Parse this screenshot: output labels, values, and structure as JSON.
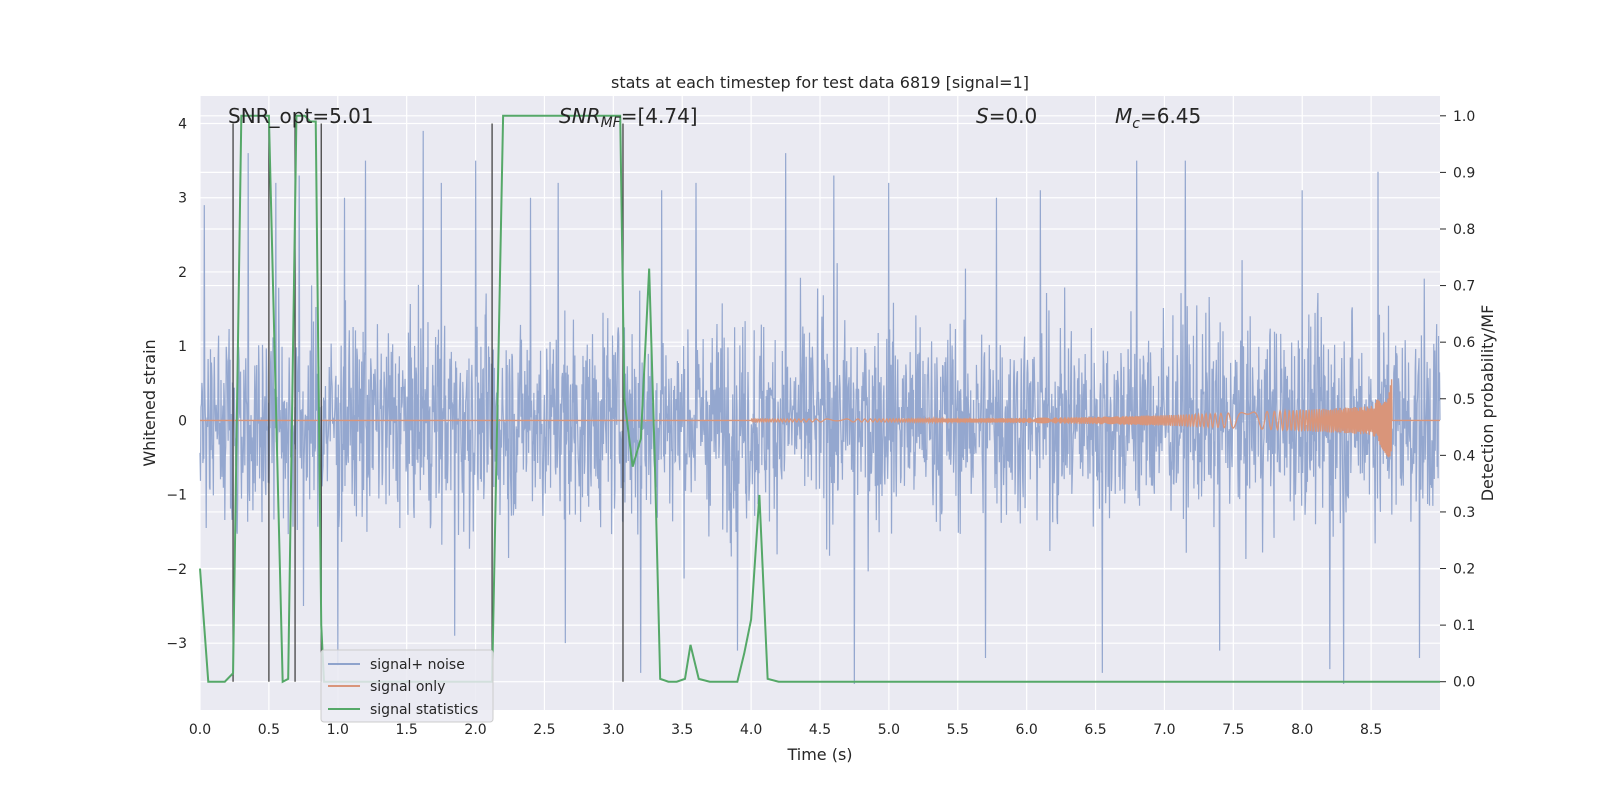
{
  "chart_data": {
    "type": "line",
    "title": "stats at each timestep for test data 6819 [signal=1]",
    "xlabel": "Time (s)",
    "ylabel_left": "Whitened strain",
    "ylabel_right": "Detection probability/MF",
    "xlim": [
      0.0,
      9.0
    ],
    "ylim_left": [
      -3.9,
      4.37
    ],
    "ylim_right": [
      -0.05,
      1.035
    ],
    "xticks": [
      "0.0",
      "0.5",
      "1.0",
      "1.5",
      "2.0",
      "2.5",
      "3.0",
      "3.5",
      "4.0",
      "4.5",
      "5.0",
      "5.5",
      "6.0",
      "6.5",
      "7.0",
      "7.5",
      "8.0",
      "8.5"
    ],
    "yticks_left": [
      "4",
      "3",
      "2",
      "1",
      "0",
      "−1",
      "−2",
      "−3"
    ],
    "yticks_right": [
      "1.0",
      "0.9",
      "0.8",
      "0.7",
      "0.6",
      "0.5",
      "0.4",
      "0.3",
      "0.2",
      "0.1",
      "0.0"
    ],
    "annotations": {
      "snr_opt": "SNR_opt=5.01",
      "snr_mf_prefix": "SNR",
      "snr_mf_sub": "MF",
      "snr_mf_value": "=[4.74]",
      "s_sym": "S",
      "s_value": "=0.0",
      "mc_sym": "M",
      "mc_sub": "c",
      "mc_value": "=6.45"
    },
    "legend": [
      "signal+ noise",
      "signal only",
      "signal statistics"
    ],
    "colors": {
      "noise": "#8fa3cc",
      "signal": "#d9957a",
      "stats": "#55a868",
      "plot_bg": "#eaeaf2",
      "grid": "#ffffff",
      "vline": "#444444"
    },
    "series": [
      {
        "name": "signal statistics",
        "axis": "right",
        "x": [
          0.0,
          0.06,
          0.18,
          0.24,
          0.3,
          0.36,
          0.42,
          0.5,
          0.6,
          0.64,
          0.7,
          0.76,
          0.8,
          0.84,
          0.88,
          0.9,
          0.96,
          1.2,
          1.6,
          2.0,
          2.12,
          2.2,
          2.5,
          2.8,
          3.05,
          3.08,
          3.14,
          3.2,
          3.26,
          3.3,
          3.34,
          3.4,
          3.46,
          3.52,
          3.56,
          3.62,
          3.7,
          3.8,
          3.9,
          3.95,
          4.0,
          4.06,
          4.12,
          4.2,
          4.5,
          5.0,
          5.5,
          6.0,
          6.5,
          7.0,
          7.5,
          8.0,
          8.5,
          9.0
        ],
        "y": [
          0.2,
          0.0,
          0.0,
          0.015,
          1.0,
          1.0,
          1.0,
          1.0,
          0.0,
          0.005,
          1.0,
          1.0,
          0.99,
          0.99,
          0.1,
          0.0,
          0.0,
          0.0,
          0.0,
          0.0,
          0.0,
          1.0,
          1.0,
          1.0,
          1.0,
          0.5,
          0.38,
          0.43,
          0.73,
          0.4,
          0.005,
          0.0,
          0.0,
          0.005,
          0.065,
          0.005,
          0.0,
          0.0,
          0.0,
          0.05,
          0.11,
          0.33,
          0.005,
          0.0,
          0.0,
          0.0,
          0.0,
          0.0,
          0.0,
          0.0,
          0.0,
          0.0,
          0.0,
          0.0
        ]
      },
      {
        "name": "signal+ noise",
        "axis": "left",
        "peaks": [
          {
            "x": 0.03,
            "y": 2.9
          },
          {
            "x": 0.35,
            "y": 3.6
          },
          {
            "x": 0.55,
            "y": 3.2
          },
          {
            "x": 0.72,
            "y": 3.3
          },
          {
            "x": 1.05,
            "y": 3.0
          },
          {
            "x": 1.2,
            "y": 3.5
          },
          {
            "x": 1.62,
            "y": 3.9
          },
          {
            "x": 1.75,
            "y": 3.2
          },
          {
            "x": 2.0,
            "y": 3.5
          },
          {
            "x": 2.4,
            "y": 3.0
          },
          {
            "x": 2.6,
            "y": 3.2
          },
          {
            "x": 3.35,
            "y": 3.1
          },
          {
            "x": 3.6,
            "y": 3.2
          },
          {
            "x": 4.25,
            "y": 3.6
          },
          {
            "x": 4.6,
            "y": 3.3
          },
          {
            "x": 5.0,
            "y": 3.2
          },
          {
            "x": 5.78,
            "y": 3.0
          },
          {
            "x": 6.1,
            "y": 3.1
          },
          {
            "x": 6.8,
            "y": 3.5
          },
          {
            "x": 7.15,
            "y": 3.5
          },
          {
            "x": 8.0,
            "y": 3.1
          },
          {
            "x": 8.55,
            "y": 3.35
          }
        ],
        "troughs": [
          {
            "x": 0.75,
            "y": -2.5
          },
          {
            "x": 1.0,
            "y": -3.3
          },
          {
            "x": 1.85,
            "y": -2.9
          },
          {
            "x": 2.65,
            "y": -3.0
          },
          {
            "x": 3.2,
            "y": -3.4
          },
          {
            "x": 3.9,
            "y": -3.1
          },
          {
            "x": 4.75,
            "y": -3.55
          },
          {
            "x": 5.7,
            "y": -3.2
          },
          {
            "x": 6.55,
            "y": -3.4
          },
          {
            "x": 7.4,
            "y": -3.1
          },
          {
            "x": 8.3,
            "y": -3.55
          },
          {
            "x": 8.85,
            "y": -3.2
          },
          {
            "x": 8.2,
            "y": -3.35
          }
        ]
      },
      {
        "name": "signal only",
        "axis": "left",
        "chirp_start": 4.0,
        "chirp_peak_x": 8.65,
        "chirp_peak_amp": 0.55
      }
    ],
    "vlines_x": [
      0.24,
      0.5,
      0.69,
      0.88,
      2.12,
      3.07
    ]
  }
}
